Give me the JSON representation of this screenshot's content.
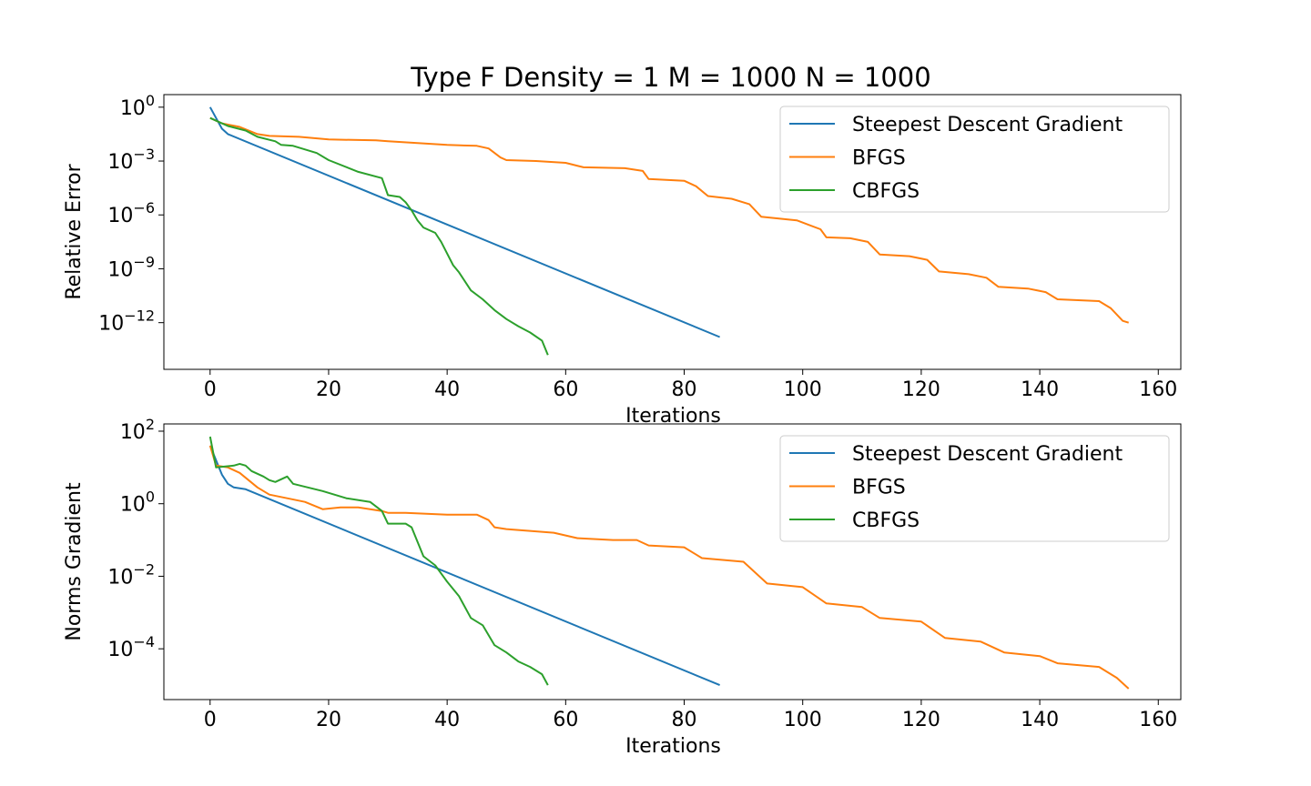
{
  "title": "Type F     Density =  1    M = 1000 N = 1000",
  "legend_labels": [
    "Steepest Descent Gradient",
    "BFGS",
    "CBFGS"
  ],
  "chart_data": [
    {
      "type": "line",
      "title": "",
      "xlabel": "Iterations",
      "ylabel": "Relative Error",
      "yscale": "log",
      "xlim": [
        -7.8,
        163.8
      ],
      "ylim_log10": [
        -14.6,
        0.7
      ],
      "xticks": [
        0,
        20,
        40,
        60,
        80,
        100,
        120,
        140,
        160
      ],
      "xtick_labels": [
        "0",
        "20",
        "40",
        "60",
        "80",
        "100",
        "120",
        "140",
        "160"
      ],
      "yticks_log10": [
        0,
        -3,
        -6,
        -9,
        -12
      ],
      "ytick_base": "10",
      "ytick_exponents": [
        "0",
        "−3",
        "−6",
        "−9",
        "−12"
      ],
      "legend": "top-right",
      "grid": false,
      "series": [
        {
          "name": "Steepest Descent Gradient",
          "color": "#1f77b4",
          "points_log10": [
            [
              0,
              0
            ],
            [
              1,
              -0.6
            ],
            [
              2,
              -1.2
            ],
            [
              3,
              -1.5
            ],
            [
              86,
              -12.8
            ]
          ]
        },
        {
          "name": "BFGS",
          "color": "#ff7f0e",
          "points_log10": [
            [
              0,
              -0.6
            ],
            [
              2,
              -0.9
            ],
            [
              5,
              -1.1
            ],
            [
              8,
              -1.5
            ],
            [
              10,
              -1.6
            ],
            [
              15,
              -1.65
            ],
            [
              20,
              -1.8
            ],
            [
              28,
              -1.85
            ],
            [
              30,
              -1.9
            ],
            [
              35,
              -2.0
            ],
            [
              40,
              -2.1
            ],
            [
              45,
              -2.15
            ],
            [
              47,
              -2.3
            ],
            [
              49,
              -2.8
            ],
            [
              50,
              -2.95
            ],
            [
              55,
              -3.0
            ],
            [
              60,
              -3.1
            ],
            [
              63,
              -3.35
            ],
            [
              70,
              -3.4
            ],
            [
              73,
              -3.55
            ],
            [
              74,
              -4.0
            ],
            [
              80,
              -4.1
            ],
            [
              82,
              -4.4
            ],
            [
              84,
              -4.95
            ],
            [
              88,
              -5.1
            ],
            [
              91,
              -5.4
            ],
            [
              93,
              -6.1
            ],
            [
              99,
              -6.3
            ],
            [
              103,
              -6.8
            ],
            [
              104,
              -7.25
            ],
            [
              108,
              -7.3
            ],
            [
              111,
              -7.5
            ],
            [
              113,
              -8.2
            ],
            [
              118,
              -8.3
            ],
            [
              121,
              -8.5
            ],
            [
              123,
              -9.15
            ],
            [
              128,
              -9.3
            ],
            [
              131,
              -9.5
            ],
            [
              133,
              -10.0
            ],
            [
              138,
              -10.1
            ],
            [
              141,
              -10.3
            ],
            [
              143,
              -10.7
            ],
            [
              150,
              -10.8
            ],
            [
              152,
              -11.2
            ],
            [
              154,
              -11.9
            ],
            [
              155,
              -12.0
            ]
          ]
        },
        {
          "name": "CBFGS",
          "color": "#2ca02c",
          "points_log10": [
            [
              0,
              -0.6
            ],
            [
              3,
              -1.05
            ],
            [
              6,
              -1.3
            ],
            [
              8,
              -1.65
            ],
            [
              11,
              -1.9
            ],
            [
              12,
              -2.1
            ],
            [
              14,
              -2.15
            ],
            [
              18,
              -2.55
            ],
            [
              20,
              -2.95
            ],
            [
              25,
              -3.6
            ],
            [
              29,
              -3.95
            ],
            [
              30,
              -4.9
            ],
            [
              32,
              -5.0
            ],
            [
              33,
              -5.3
            ],
            [
              34,
              -5.75
            ],
            [
              35,
              -6.3
            ],
            [
              36,
              -6.7
            ],
            [
              38,
              -7.0
            ],
            [
              39,
              -7.5
            ],
            [
              41,
              -8.8
            ],
            [
              42,
              -9.2
            ],
            [
              44,
              -10.2
            ],
            [
              46,
              -10.7
            ],
            [
              48,
              -11.3
            ],
            [
              50,
              -11.8
            ],
            [
              52,
              -12.2
            ],
            [
              54,
              -12.55
            ],
            [
              56,
              -13.0
            ],
            [
              57,
              -13.8
            ]
          ]
        }
      ]
    },
    {
      "type": "line",
      "title": "",
      "xlabel": "Iterations",
      "ylabel": "Norms Gradient",
      "yscale": "log",
      "xlim": [
        -7.8,
        163.8
      ],
      "ylim_log10": [
        -5.4,
        2.2
      ],
      "xticks": [
        0,
        20,
        40,
        60,
        80,
        100,
        120,
        140,
        160
      ],
      "xtick_labels": [
        "0",
        "20",
        "40",
        "60",
        "80",
        "100",
        "120",
        "140",
        "160"
      ],
      "yticks_log10": [
        2,
        0,
        -2,
        -4
      ],
      "ytick_base": "10",
      "ytick_exponents": [
        "2",
        "0",
        "−2",
        "−4"
      ],
      "legend": "top-right",
      "grid": false,
      "series": [
        {
          "name": "Steepest Descent Gradient",
          "color": "#1f77b4",
          "points_log10": [
            [
              0,
              1.6
            ],
            [
              1,
              1.2
            ],
            [
              2,
              0.8
            ],
            [
              3,
              0.55
            ],
            [
              4,
              0.45
            ],
            [
              6,
              0.4
            ],
            [
              86,
              -5.0
            ]
          ]
        },
        {
          "name": "BFGS",
          "color": "#ff7f0e",
          "points_log10": [
            [
              0,
              1.6
            ],
            [
              1,
              1.05
            ],
            [
              3,
              1.0
            ],
            [
              5,
              0.85
            ],
            [
              8,
              0.45
            ],
            [
              10,
              0.25
            ],
            [
              13,
              0.15
            ],
            [
              16,
              0.05
            ],
            [
              19,
              -0.15
            ],
            [
              22,
              -0.1
            ],
            [
              25,
              -0.1
            ],
            [
              29,
              -0.2
            ],
            [
              30,
              -0.25
            ],
            [
              33,
              -0.25
            ],
            [
              40,
              -0.3
            ],
            [
              45,
              -0.3
            ],
            [
              47,
              -0.45
            ],
            [
              48,
              -0.65
            ],
            [
              50,
              -0.7
            ],
            [
              58,
              -0.8
            ],
            [
              62,
              -0.95
            ],
            [
              68,
              -1.0
            ],
            [
              72,
              -1.0
            ],
            [
              74,
              -1.15
            ],
            [
              80,
              -1.2
            ],
            [
              83,
              -1.5
            ],
            [
              90,
              -1.6
            ],
            [
              94,
              -2.2
            ],
            [
              100,
              -2.3
            ],
            [
              104,
              -2.75
            ],
            [
              110,
              -2.85
            ],
            [
              113,
              -3.15
            ],
            [
              120,
              -3.25
            ],
            [
              124,
              -3.7
            ],
            [
              130,
              -3.8
            ],
            [
              134,
              -4.1
            ],
            [
              140,
              -4.2
            ],
            [
              143,
              -4.4
            ],
            [
              150,
              -4.5
            ],
            [
              153,
              -4.8
            ],
            [
              155,
              -5.1
            ]
          ]
        },
        {
          "name": "CBFGS",
          "color": "#2ca02c",
          "points_log10": [
            [
              0,
              1.85
            ],
            [
              1,
              1.0
            ],
            [
              4,
              1.05
            ],
            [
              5,
              1.1
            ],
            [
              6,
              1.05
            ],
            [
              7,
              0.9
            ],
            [
              9,
              0.75
            ],
            [
              10,
              0.65
            ],
            [
              11,
              0.6
            ],
            [
              13,
              0.75
            ],
            [
              14,
              0.55
            ],
            [
              19,
              0.35
            ],
            [
              23,
              0.15
            ],
            [
              27,
              0.05
            ],
            [
              29,
              -0.2
            ],
            [
              30,
              -0.55
            ],
            [
              33,
              -0.55
            ],
            [
              34,
              -0.65
            ],
            [
              36,
              -1.45
            ],
            [
              38,
              -1.7
            ],
            [
              40,
              -2.15
            ],
            [
              42,
              -2.55
            ],
            [
              44,
              -3.15
            ],
            [
              46,
              -3.35
            ],
            [
              48,
              -3.9
            ],
            [
              50,
              -4.1
            ],
            [
              52,
              -4.35
            ],
            [
              54,
              -4.5
            ],
            [
              56,
              -4.7
            ],
            [
              57,
              -5.0
            ]
          ]
        }
      ]
    }
  ]
}
